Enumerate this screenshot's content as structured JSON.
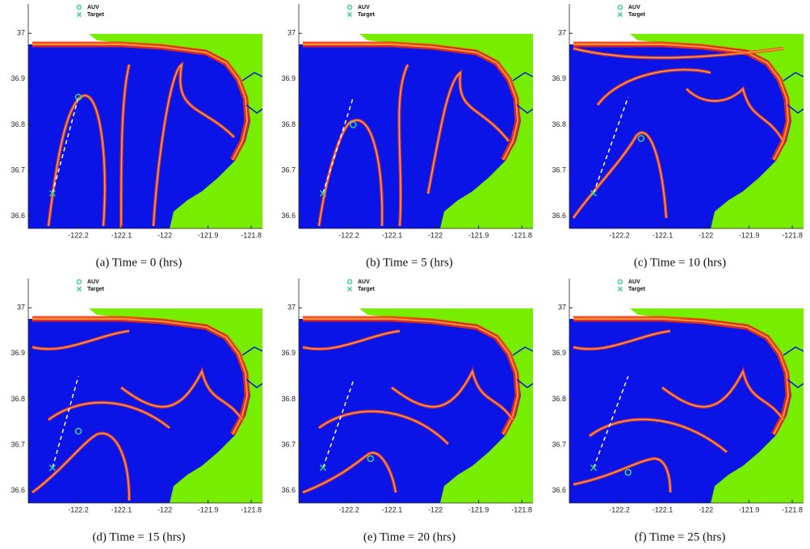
{
  "chart_data": [
    {
      "type": "scatter",
      "caption": "(a)  Time = 0 (hrs)",
      "xlim": [
        -122.316,
        -121.774
      ],
      "ylim": [
        36.573,
        37.064
      ],
      "xticks": [
        -122.2,
        -122.1,
        -122,
        -121.9,
        -121.8
      ],
      "yticks": [
        36.6,
        36.7,
        36.8,
        36.9,
        37
      ],
      "series": [
        {
          "name": "AUV",
          "color": "#3ecf8a",
          "marker": "circle",
          "x": [
            -122.2
          ],
          "y": [
            36.86
          ]
        },
        {
          "name": "Target",
          "color": "#3ecf8a",
          "marker": "x",
          "x": [
            -122.26
          ],
          "y": [
            36.65
          ]
        }
      ],
      "lines": [
        {
          "color": "#ffffff",
          "dashed": true,
          "x": [
            -122.26,
            -122.2
          ],
          "y": [
            36.65,
            36.86
          ]
        }
      ]
    },
    {
      "type": "scatter",
      "caption": "(b)  Time = 5 (hrs)",
      "xlim": [
        -122.316,
        -121.774
      ],
      "ylim": [
        36.573,
        37.064
      ],
      "xticks": [
        -122.2,
        -122.1,
        -122,
        -121.9,
        -121.8
      ],
      "yticks": [
        36.6,
        36.7,
        36.8,
        36.9,
        37
      ],
      "series": [
        {
          "name": "AUV",
          "color": "#3ecf8a",
          "marker": "circle",
          "x": [
            -122.19
          ],
          "y": [
            36.8
          ]
        },
        {
          "name": "Target",
          "color": "#3ecf8a",
          "marker": "x",
          "x": [
            -122.26
          ],
          "y": [
            36.65
          ]
        }
      ],
      "lines": [
        {
          "color": "#ffffff",
          "dashed": true,
          "x": [
            -122.26,
            -122.19
          ],
          "y": [
            36.65,
            36.86
          ]
        }
      ]
    },
    {
      "type": "scatter",
      "caption": "(c)  Time = 10 (hrs)",
      "xlim": [
        -122.316,
        -121.774
      ],
      "ylim": [
        36.573,
        37.064
      ],
      "xticks": [
        -122.2,
        -122.1,
        -122,
        -121.9,
        -121.8
      ],
      "yticks": [
        36.6,
        36.7,
        36.8,
        36.9,
        37
      ],
      "series": [
        {
          "name": "AUV",
          "color": "#3ecf8a",
          "marker": "circle",
          "x": [
            -122.15
          ],
          "y": [
            36.77
          ]
        },
        {
          "name": "Target",
          "color": "#3ecf8a",
          "marker": "x",
          "x": [
            -122.26
          ],
          "y": [
            36.65
          ]
        }
      ],
      "lines": [
        {
          "color": "#ffffff",
          "dashed": true,
          "x": [
            -122.26,
            -122.18
          ],
          "y": [
            36.65,
            36.86
          ]
        }
      ]
    },
    {
      "type": "scatter",
      "caption": "(d)  Time = 15 (hrs)",
      "xlim": [
        -122.316,
        -121.774
      ],
      "ylim": [
        36.573,
        37.064
      ],
      "xticks": [
        -122.2,
        -122.1,
        -122,
        -121.9,
        -121.8
      ],
      "yticks": [
        36.6,
        36.7,
        36.8,
        36.9,
        37
      ],
      "series": [
        {
          "name": "AUV",
          "color": "#3ecf8a",
          "marker": "circle",
          "x": [
            -122.2
          ],
          "y": [
            36.73
          ]
        },
        {
          "name": "Target",
          "color": "#3ecf8a",
          "marker": "x",
          "x": [
            -122.26
          ],
          "y": [
            36.65
          ]
        }
      ],
      "lines": [
        {
          "color": "#ffffff",
          "dashed": true,
          "x": [
            -122.26,
            -122.2
          ],
          "y": [
            36.65,
            36.85
          ]
        }
      ]
    },
    {
      "type": "scatter",
      "caption": "(e)  Time = 20 (hrs)",
      "xlim": [
        -122.316,
        -121.774
      ],
      "ylim": [
        36.573,
        37.064
      ],
      "xticks": [
        -122.2,
        -122.1,
        -122,
        -121.9,
        -121.8
      ],
      "yticks": [
        36.6,
        36.7,
        36.8,
        36.9,
        37
      ],
      "series": [
        {
          "name": "AUV",
          "color": "#3ecf8a",
          "marker": "circle",
          "x": [
            -122.15
          ],
          "y": [
            36.67
          ]
        },
        {
          "name": "Target",
          "color": "#3ecf8a",
          "marker": "x",
          "x": [
            -122.26
          ],
          "y": [
            36.65
          ]
        }
      ],
      "lines": [
        {
          "color": "#ffffff",
          "dashed": true,
          "x": [
            -122.26,
            -122.19
          ],
          "y": [
            36.65,
            36.84
          ]
        }
      ]
    },
    {
      "type": "scatter",
      "caption": "(f)  Time = 25 (hrs)",
      "xlim": [
        -122.316,
        -121.774
      ],
      "ylim": [
        36.573,
        37.064
      ],
      "xticks": [
        -122.2,
        -122.1,
        -122,
        -121.9,
        -121.8
      ],
      "yticks": [
        36.6,
        36.7,
        36.8,
        36.9,
        37
      ],
      "series": [
        {
          "name": "AUV",
          "color": "#3ecf8a",
          "marker": "circle",
          "x": [
            -122.18
          ],
          "y": [
            36.64
          ]
        },
        {
          "name": "Target",
          "color": "#3ecf8a",
          "marker": "x",
          "x": [
            -122.26
          ],
          "y": [
            36.65
          ]
        }
      ],
      "lines": [
        {
          "color": "#ffffff",
          "dashed": true,
          "x": [
            -122.26,
            -122.18
          ],
          "y": [
            36.65,
            36.85
          ]
        }
      ]
    }
  ]
}
